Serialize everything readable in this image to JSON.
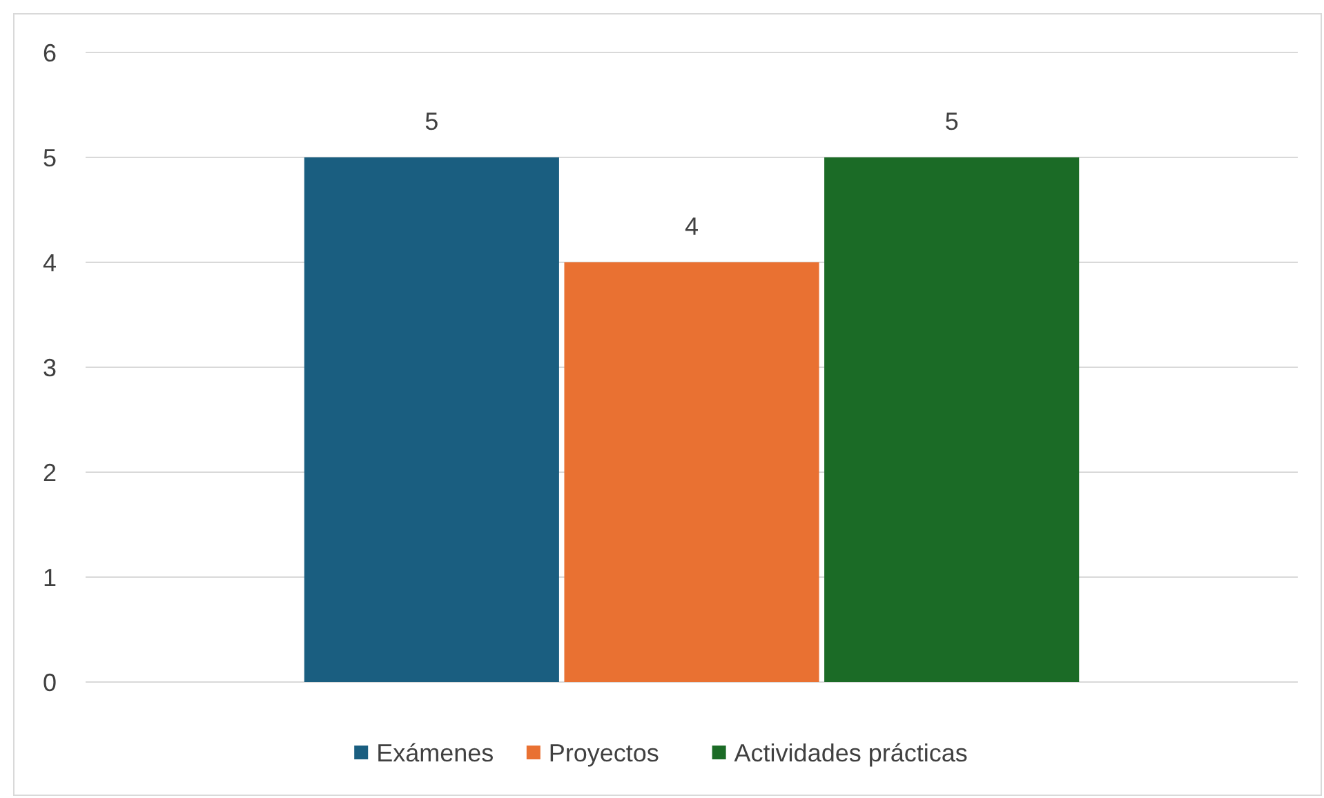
{
  "chart_data": {
    "type": "bar",
    "categories": [
      null
    ],
    "series": [
      {
        "name": "Exámenes",
        "color": "#1a5e80",
        "values": [
          5
        ]
      },
      {
        "name": "Proyectos",
        "color": "#e97132",
        "values": [
          4
        ]
      },
      {
        "name": "Actividades prácticas",
        "color": "#1b6b26",
        "values": [
          5
        ]
      }
    ],
    "ylim": [
      0,
      6
    ],
    "yticks": [
      0,
      1,
      2,
      3,
      4,
      5,
      6
    ],
    "grid": "y",
    "legend": "bottom",
    "data_labels": true
  }
}
